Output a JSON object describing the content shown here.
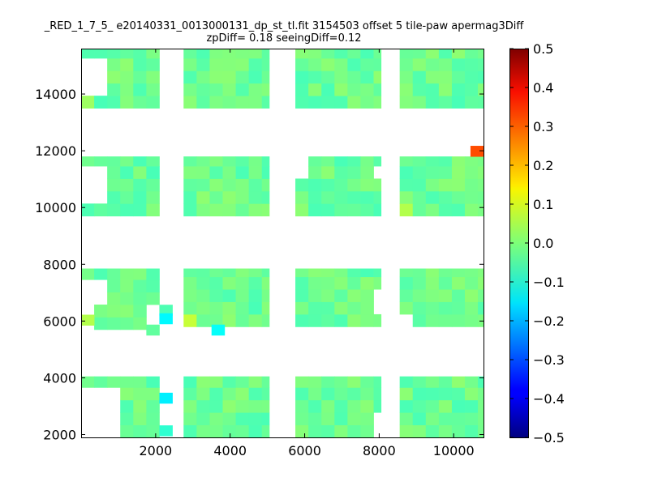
{
  "chart_data": {
    "type": "heatmap",
    "title": "_RED_1_7_5_ e20140331_0013000131_dp_st_tl.fit 3154503 offset 5 tile-paw apermag3Diff",
    "subtitle": "zpDiff= 0.18 seeingDiff=0.12",
    "xlabel": "",
    "ylabel": "",
    "xlim": [
      0,
      10800
    ],
    "ylim": [
      1900,
      15600
    ],
    "x_ticks": [
      2000,
      4000,
      6000,
      8000,
      10000
    ],
    "y_ticks": [
      2000,
      4000,
      6000,
      8000,
      10000,
      12000,
      14000
    ],
    "x_tick_labels": [
      "2000",
      "4000",
      "6000",
      "8000",
      "10000"
    ],
    "y_tick_labels": [
      "2000",
      "4000",
      "6000",
      "8000",
      "10000",
      "12000",
      "14000"
    ],
    "colorbar": {
      "vmin": -0.5,
      "vmax": 0.5,
      "colormap": "jet",
      "ticks": [
        0.5,
        0.4,
        0.3,
        0.2,
        0.1,
        0.0,
        -0.1,
        -0.2,
        -0.3,
        -0.4,
        -0.5
      ],
      "tick_labels": [
        "0.5",
        "0.4",
        "0.3",
        "0.2",
        "0.1",
        "0.0",
        "−0.1",
        "−0.2",
        "−0.3",
        "−0.4",
        "−0.5"
      ]
    },
    "cell_size": [
      350,
      440
    ],
    "base_value": -0.02,
    "blocks": [
      {
        "x": [
          0,
          2100
        ],
        "y": [
          13500,
          15600
        ]
      },
      {
        "x": [
          2750,
          5050
        ],
        "y": [
          13500,
          15600
        ]
      },
      {
        "x": [
          5750,
          8050
        ],
        "y": [
          13500,
          15600
        ]
      },
      {
        "x": [
          8550,
          10800
        ],
        "y": [
          13500,
          15600
        ]
      },
      {
        "x": [
          0,
          2100
        ],
        "y": [
          9700,
          11800
        ]
      },
      {
        "x": [
          2750,
          5050
        ],
        "y": [
          9700,
          11800
        ]
      },
      {
        "x": [
          5750,
          8050
        ],
        "y": [
          9700,
          11800
        ]
      },
      {
        "x": [
          8550,
          10800
        ],
        "y": [
          9700,
          11800
        ]
      },
      {
        "x": [
          0,
          2100
        ],
        "y": [
          5700,
          7850
        ]
      },
      {
        "x": [
          2750,
          5050
        ],
        "y": [
          5800,
          7850
        ]
      },
      {
        "x": [
          5750,
          8050
        ],
        "y": [
          5800,
          7850
        ]
      },
      {
        "x": [
          8550,
          10800
        ],
        "y": [
          5800,
          7850
        ]
      },
      {
        "x": [
          0,
          2100
        ],
        "y": [
          1900,
          4050
        ]
      },
      {
        "x": [
          2750,
          5050
        ],
        "y": [
          1900,
          4050
        ]
      },
      {
        "x": [
          5750,
          8050
        ],
        "y": [
          1900,
          4050
        ]
      },
      {
        "x": [
          8550,
          10800
        ],
        "y": [
          1900,
          4050
        ]
      }
    ],
    "holes": [
      {
        "x": [
          0,
          700
        ],
        "y": [
          13900,
          15200
        ]
      },
      {
        "x": [
          0,
          700
        ],
        "y": [
          10100,
          11350
        ]
      },
      {
        "x": [
          0,
          700
        ],
        "y": [
          6200,
          7450
        ]
      },
      {
        "x": [
          0,
          1050
        ],
        "y": [
          1900,
          3600
        ]
      },
      {
        "x": [
          8000,
          8550
        ],
        "y": [
          13900,
          15200
        ]
      },
      {
        "x": [
          5750,
          6100
        ],
        "y": [
          11000,
          11800
        ]
      },
      {
        "x": [
          7700,
          8050
        ],
        "y": [
          11000,
          11350
        ]
      },
      {
        "x": [
          7700,
          8050
        ],
        "y": [
          6200,
          7100
        ]
      },
      {
        "x": [
          8550,
          8900
        ],
        "y": [
          5800,
          6200
        ]
      },
      {
        "x": [
          7700,
          8050
        ],
        "y": [
          1900,
          2650
        ]
      },
      {
        "x": [
          1750,
          2100
        ],
        "y": [
          5700,
          6150
        ]
      },
      {
        "x": [
          0,
          350
        ],
        "y": [
          5700,
          6150
        ]
      }
    ],
    "extra_cells": [
      {
        "x": 2100,
        "y": 6200,
        "v": -0.05
      },
      {
        "x": 2100,
        "y": 5900,
        "v": -0.13
      },
      {
        "x": 1750,
        "y": 5500,
        "v": -0.03
      },
      {
        "x": 3500,
        "y": 5500,
        "v": -0.12
      },
      {
        "x": 0,
        "y": 5850,
        "v": 0.05
      },
      {
        "x": 2100,
        "y": 3100,
        "v": -0.14
      },
      {
        "x": 2100,
        "y": 1950,
        "v": -0.08
      },
      {
        "x": 10450,
        "y": 11800,
        "v": 0.3
      }
    ],
    "special_cells": [
      {
        "x": 1750,
        "y": 15200,
        "v": 0.04
      },
      {
        "x": 0,
        "y": 15200,
        "v": 0.05
      },
      {
        "x": 350,
        "y": 15200,
        "v": 0.04
      },
      {
        "x": 700,
        "y": 15200,
        "v": 0.05
      },
      {
        "x": 1050,
        "y": 15200,
        "v": 0.04
      },
      {
        "x": 0,
        "y": 13500,
        "v": 0.03
      },
      {
        "x": 0,
        "y": 11350,
        "v": 0.06
      },
      {
        "x": 350,
        "y": 11350,
        "v": 0.05
      },
      {
        "x": 0,
        "y": 9700,
        "v": -0.05
      },
      {
        "x": 1750,
        "y": 11350,
        "v": -0.06
      },
      {
        "x": 2750,
        "y": 11350,
        "v": 0.03
      },
      {
        "x": 3850,
        "y": 11350,
        "v": 0.05
      },
      {
        "x": 4200,
        "y": 11350,
        "v": 0.08
      },
      {
        "x": 4550,
        "y": 11350,
        "v": 0.07
      },
      {
        "x": 5750,
        "y": 10650,
        "v": 0.08
      },
      {
        "x": 8550,
        "y": 9700,
        "v": 0.05
      },
      {
        "x": 8550,
        "y": 10100,
        "v": 0.02
      },
      {
        "x": 3500,
        "y": 9700,
        "v": -0.09
      },
      {
        "x": 10450,
        "y": 9700,
        "v": 0.03
      },
      {
        "x": 0,
        "y": 7450,
        "v": 0.02
      },
      {
        "x": 350,
        "y": 7450,
        "v": 0.03
      },
      {
        "x": 700,
        "y": 7450,
        "v": -0.04
      },
      {
        "x": 1050,
        "y": 7450,
        "v": 0.04
      },
      {
        "x": 1400,
        "y": 7450,
        "v": 0.05
      },
      {
        "x": 2750,
        "y": 7450,
        "v": 0.07
      },
      {
        "x": 4200,
        "y": 7450,
        "v": 0.08
      },
      {
        "x": 2750,
        "y": 5800,
        "v": 0.07
      },
      {
        "x": 8550,
        "y": 6600,
        "v": 0.06
      },
      {
        "x": 8550,
        "y": 6200,
        "v": 0.05
      },
      {
        "x": 8550,
        "y": 7450,
        "v": 0.03
      },
      {
        "x": 0,
        "y": 3600,
        "v": 0.06
      },
      {
        "x": 350,
        "y": 3600,
        "v": 0.04
      },
      {
        "x": 700,
        "y": 3600,
        "v": 0.05
      },
      {
        "x": 1050,
        "y": 3600,
        "v": 0.04
      },
      {
        "x": 2750,
        "y": 3200,
        "v": 0.08
      },
      {
        "x": 700,
        "y": 2350,
        "v": 0.05
      },
      {
        "x": 8550,
        "y": 2350,
        "v": 0.1
      },
      {
        "x": 8900,
        "y": 1950,
        "v": 0.08
      },
      {
        "x": 9250,
        "y": 1950,
        "v": 0.08
      },
      {
        "x": 9600,
        "y": 1950,
        "v": 0.07
      },
      {
        "x": 9950,
        "y": 1950,
        "v": 0.06
      },
      {
        "x": 10300,
        "y": 1950,
        "v": 0.05
      },
      {
        "x": 8900,
        "y": 2350,
        "v": 0.07
      },
      {
        "x": 4900,
        "y": 1950,
        "v": -0.06
      },
      {
        "x": 7350,
        "y": 14500,
        "v": -0.05
      },
      {
        "x": 7900,
        "y": 15200,
        "v": -0.06
      }
    ]
  }
}
